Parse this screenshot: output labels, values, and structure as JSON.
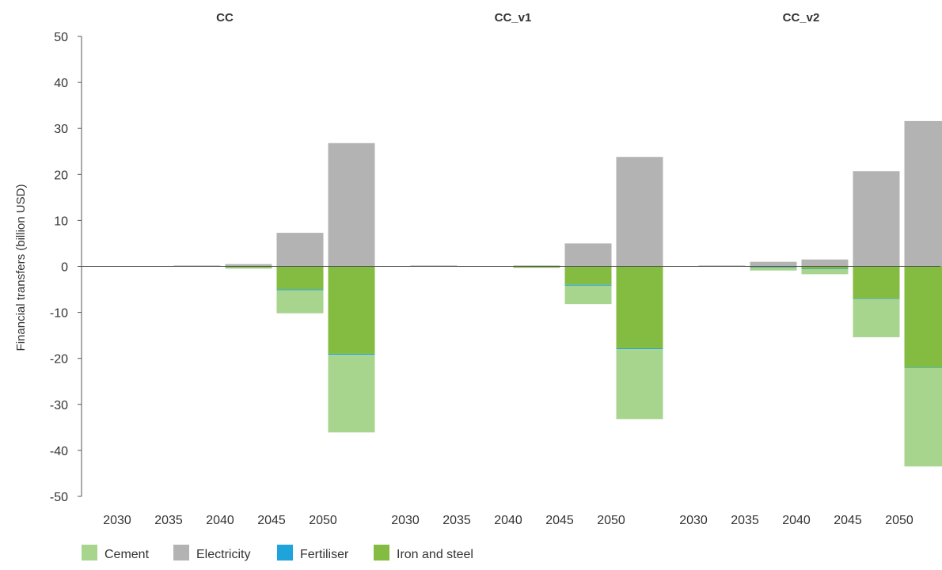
{
  "chart_data": {
    "type": "bar",
    "stacked": true,
    "ylabel": "Financial transfers (billion USD)",
    "ylim": [
      -50,
      50
    ],
    "yticks": [
      "50",
      "40",
      "30",
      "20",
      "10",
      "0",
      "-10",
      "-20",
      "-30",
      "-40",
      "-50"
    ],
    "ytick_values": [
      50,
      40,
      30,
      20,
      10,
      0,
      -10,
      -20,
      -30,
      -40,
      -50
    ],
    "grid": false,
    "legend_position": "bottom-left",
    "categories": [
      "2030",
      "2035",
      "2040",
      "2045",
      "2050"
    ],
    "series": [
      {
        "name": "Cement",
        "color": "#a8d58e"
      },
      {
        "name": "Electricity",
        "color": "#b3b3b3"
      },
      {
        "name": "Fertiliser",
        "color": "#1fa3db"
      },
      {
        "name": "Iron and steel",
        "color": "#84bb41"
      }
    ],
    "panels": [
      {
        "title": "CC",
        "values": {
          "Electricity": [
            0.0,
            0.2,
            0.5,
            7.3,
            26.8
          ],
          "Iron and steel": [
            0.0,
            0.0,
            -0.3,
            -5.0,
            -19.0
          ],
          "Fertiliser": [
            0.0,
            0.0,
            0.0,
            -0.2,
            -0.2
          ],
          "Cement": [
            0.0,
            0.0,
            -0.2,
            -5.0,
            -16.9
          ]
        }
      },
      {
        "title": "CC_v1",
        "values": {
          "Electricity": [
            0.2,
            0.0,
            0.2,
            5.0,
            23.8
          ],
          "Iron and steel": [
            0.0,
            0.0,
            -0.3,
            -4.0,
            -17.8
          ],
          "Fertiliser": [
            0.0,
            0.0,
            0.0,
            -0.2,
            -0.2
          ],
          "Cement": [
            0.0,
            0.0,
            0.0,
            -4.0,
            -15.2
          ]
        }
      },
      {
        "title": "CC_v2",
        "values": {
          "Electricity": [
            0.2,
            1.0,
            1.5,
            20.7,
            31.6
          ],
          "Iron and steel": [
            0.0,
            -0.2,
            -0.5,
            -7.0,
            -22.0
          ],
          "Fertiliser": [
            0.0,
            -0.1,
            -0.1,
            -0.1,
            -0.1
          ],
          "Cement": [
            0.0,
            -0.6,
            -1.1,
            -8.3,
            -21.4
          ]
        }
      }
    ]
  }
}
